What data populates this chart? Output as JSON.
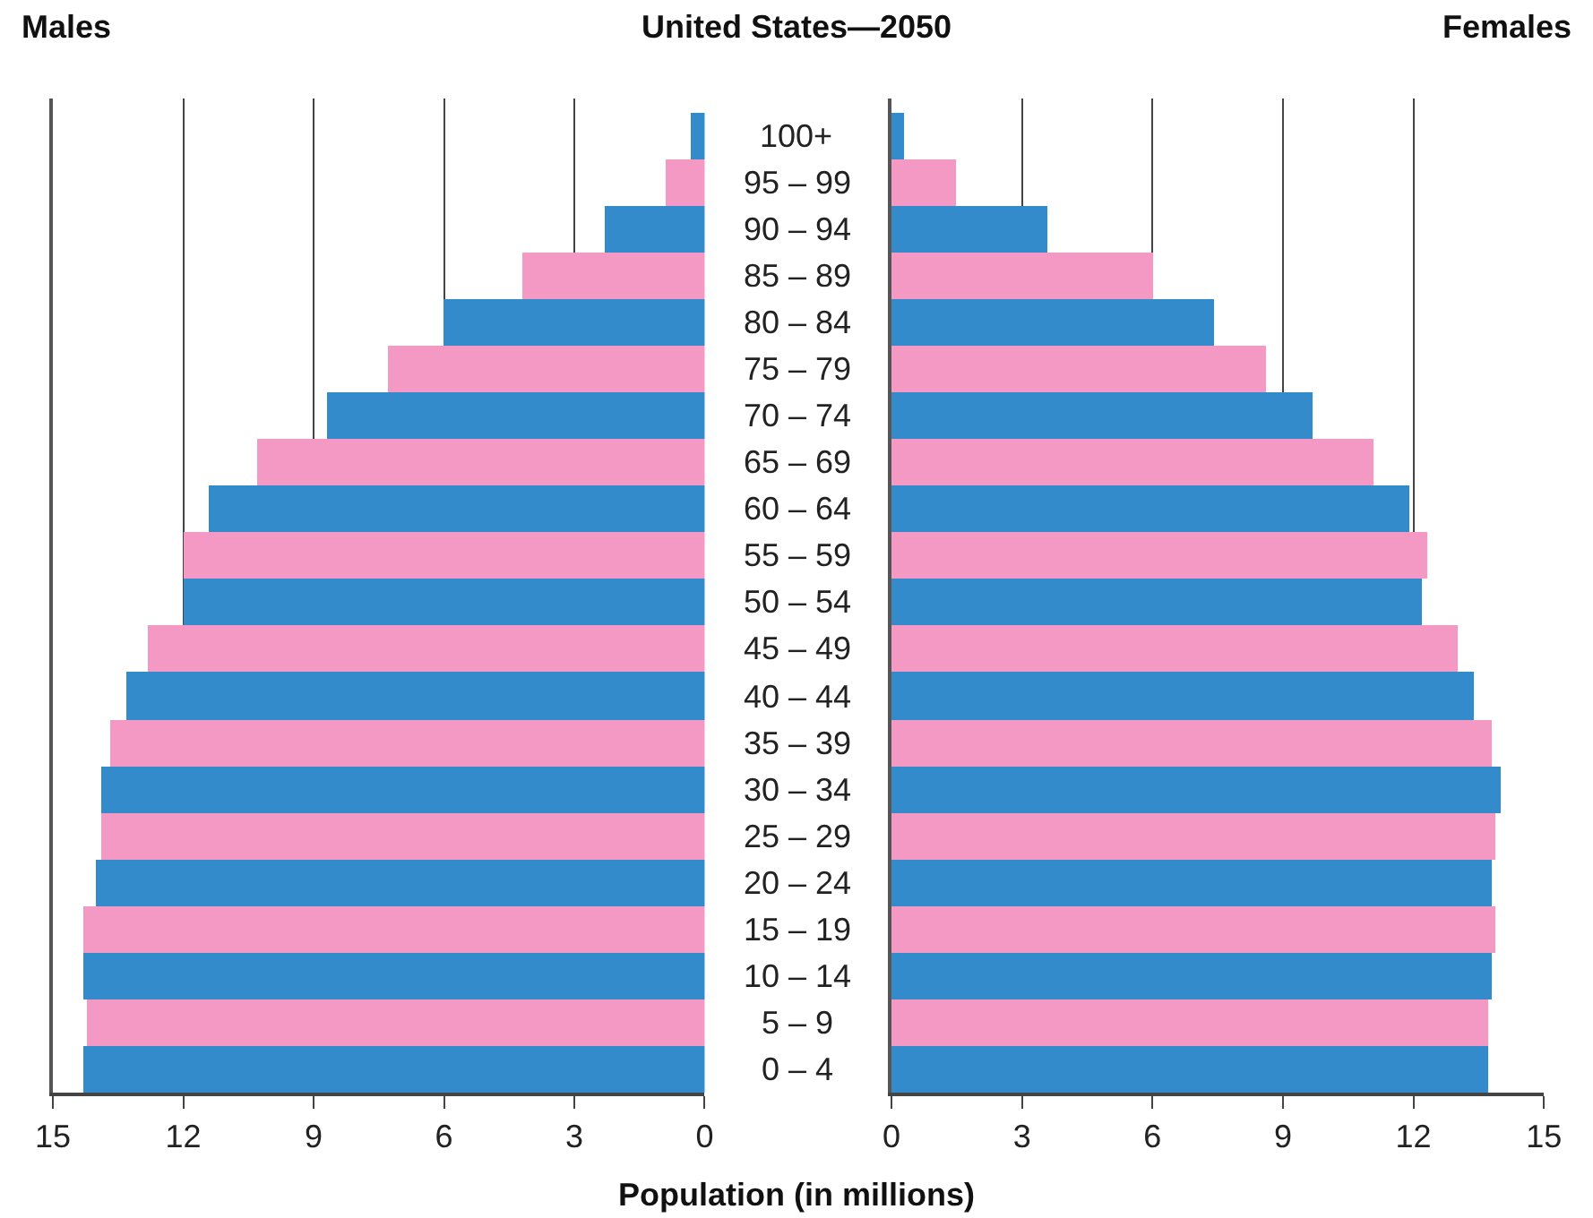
{
  "chart_data": [
    {
      "type": "bar",
      "orientation": "horizontal",
      "title": "Males",
      "annotations": [
        "United States—2050"
      ],
      "values": [
        0.3,
        0.9,
        2.3,
        4.2,
        6.0,
        7.3,
        8.7,
        10.3,
        11.4,
        12.0,
        12.0,
        12.8,
        13.3,
        13.7,
        13.9,
        13.9,
        14.0,
        14.3,
        14.3,
        14.2,
        14.3
      ],
      "colors": [
        "#348bcb",
        "#f399c3",
        "#348bcb",
        "#f399c3",
        "#348bcb",
        "#f399c3",
        "#348bcb",
        "#f399c3",
        "#348bcb",
        "#f399c3",
        "#348bcb",
        "#f399c3",
        "#348bcb",
        "#f399c3",
        "#348bcb",
        "#f399c3",
        "#348bcb",
        "#f399c3",
        "#348bcb",
        "#f399c3",
        "#348bcb"
      ],
      "xlim": [
        15,
        0
      ],
      "xticks": [
        15,
        12,
        9,
        6,
        3,
        0
      ],
      "grid": "x",
      "tick_labels": "x"
    },
    {
      "type": "bar",
      "orientation": "horizontal",
      "title": "Females",
      "xlabel": "Population (in millions)",
      "categories": [
        "100+",
        "95 – 99",
        "90 – 94",
        "85 – 89",
        "80 – 84",
        "75 – 79",
        "70 – 74",
        "65 – 69",
        "60 – 64",
        "55 – 59",
        "50 – 54",
        "45 – 49",
        "40 – 44",
        "35 – 39",
        "30 – 34",
        "25 – 29",
        "20 – 24",
        "15 – 19",
        "10 – 14",
        "5 – 9",
        "0 – 4"
      ],
      "values": [
        0.3,
        1.5,
        3.6,
        6.0,
        7.4,
        8.6,
        9.7,
        11.1,
        11.9,
        12.3,
        12.2,
        13.0,
        13.4,
        13.8,
        14.0,
        13.9,
        13.8,
        13.9,
        13.8,
        13.7,
        13.7
      ],
      "colors": [
        "#348bcb",
        "#f399c3",
        "#348bcb",
        "#f399c3",
        "#348bcb",
        "#f399c3",
        "#348bcb",
        "#f399c3",
        "#348bcb",
        "#f399c3",
        "#348bcb",
        "#f399c3",
        "#348bcb",
        "#f399c3",
        "#348bcb",
        "#f399c3",
        "#348bcb",
        "#f399c3",
        "#348bcb",
        "#f399c3",
        "#348bcb"
      ],
      "xlim": [
        0,
        15
      ],
      "xticks": [
        0,
        3,
        6,
        9,
        12,
        15
      ],
      "grid": "x"
    }
  ]
}
